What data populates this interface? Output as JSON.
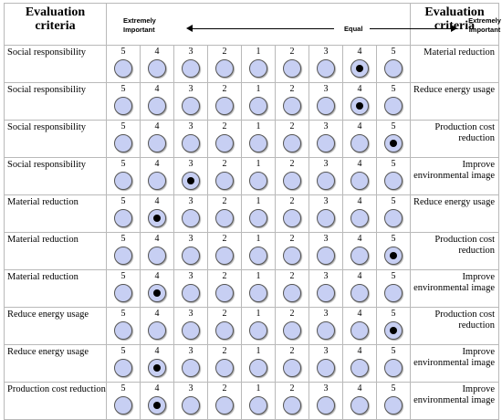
{
  "header": {
    "left_title": "Evaluation criteria",
    "right_title": "Evaluation criteria",
    "scale_left_label": "Extremely Important",
    "scale_mid_label": "Equal",
    "scale_right_label": "Extremely Important"
  },
  "scale_numbers": [
    "5",
    "4",
    "3",
    "2",
    "1",
    "2",
    "3",
    "4",
    "5"
  ],
  "rows": [
    {
      "left": "Social responsibility",
      "right": "Material reduction",
      "selected": 7
    },
    {
      "left": "Social responsibility",
      "right": "Reduce energy usage",
      "selected": 7
    },
    {
      "left": "Social responsibility",
      "right": "Production cost reduction",
      "selected": 8
    },
    {
      "left": "Social responsibility",
      "right": "Improve environmental image",
      "selected": 2
    },
    {
      "left": "Material reduction",
      "right": "Reduce energy usage",
      "selected": 1
    },
    {
      "left": "Material reduction",
      "right": "Production cost reduction",
      "selected": 8
    },
    {
      "left": "Material reduction",
      "right": "Improve environmental image",
      "selected": 1
    },
    {
      "left": "Reduce energy usage",
      "right": "Production cost reduction",
      "selected": 8
    },
    {
      "left": "Reduce energy usage",
      "right": "Improve environmental image",
      "selected": 1
    },
    {
      "left": "Production cost reduction",
      "right": "Improve environmental image",
      "selected": 1
    }
  ],
  "colors": {
    "radio_fill": "#c7cff3",
    "border": "#b9b9b9",
    "selected_dot": "#000000"
  }
}
